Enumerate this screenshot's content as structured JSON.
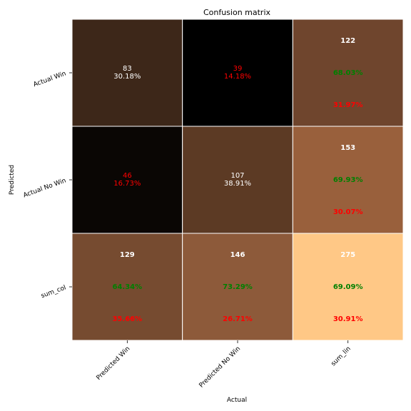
{
  "chart_data": {
    "type": "heatmap",
    "title": "Confusion matrix",
    "xlabel": "Actual",
    "ylabel": "Predicted",
    "x_categories": [
      "Predicted Win",
      "Predicted No Win",
      "sum_lin"
    ],
    "y_categories": [
      "Actual Win",
      "Actual No Win",
      "sum_col"
    ],
    "colors": {
      "text_white": "#ffffff",
      "text_red": "#ff0000",
      "text_green": "#008000",
      "grid_line": "#ffffff"
    },
    "cells": [
      {
        "row": 0,
        "col": 0,
        "value": 83,
        "color": "#3d2719",
        "bold": false,
        "lines": [
          {
            "text": "83",
            "color": "white"
          },
          {
            "text": "30.18%",
            "color": "white"
          }
        ]
      },
      {
        "row": 0,
        "col": 1,
        "value": 39,
        "color": "#000000",
        "bold": false,
        "lines": [
          {
            "text": "39",
            "color": "red"
          },
          {
            "text": "14.18%",
            "color": "red"
          }
        ]
      },
      {
        "row": 0,
        "col": 2,
        "value": 122,
        "color": "#6f452d",
        "bold": true,
        "lines": [
          {
            "text": "122",
            "color": "white"
          },
          {
            "text": "68.03%",
            "color": "green"
          },
          {
            "text": "31.97%",
            "color": "red"
          }
        ]
      },
      {
        "row": 1,
        "col": 0,
        "value": 46,
        "color": "#0a0604",
        "bold": false,
        "lines": [
          {
            "text": "46",
            "color": "red"
          },
          {
            "text": "16.73%",
            "color": "red"
          }
        ]
      },
      {
        "row": 1,
        "col": 1,
        "value": 107,
        "color": "#5c3a24",
        "bold": false,
        "lines": [
          {
            "text": "107",
            "color": "white"
          },
          {
            "text": "38.91%",
            "color": "white"
          }
        ]
      },
      {
        "row": 1,
        "col": 2,
        "value": 153,
        "color": "#99603c",
        "bold": true,
        "lines": [
          {
            "text": "153",
            "color": "white"
          },
          {
            "text": "69.93%",
            "color": "green"
          },
          {
            "text": "30.07%",
            "color": "red"
          }
        ]
      },
      {
        "row": 2,
        "col": 0,
        "value": 129,
        "color": "#764b30",
        "bold": true,
        "lines": [
          {
            "text": "129",
            "color": "white"
          },
          {
            "text": "64.34%",
            "color": "green"
          },
          {
            "text": "35.66%",
            "color": "red"
          }
        ]
      },
      {
        "row": 2,
        "col": 1,
        "value": 146,
        "color": "#8d5a3a",
        "bold": true,
        "lines": [
          {
            "text": "146",
            "color": "white"
          },
          {
            "text": "73.29%",
            "color": "green"
          },
          {
            "text": "26.71%",
            "color": "red"
          }
        ]
      },
      {
        "row": 2,
        "col": 2,
        "value": 275,
        "color": "#ffc886",
        "bold": true,
        "lines": [
          {
            "text": "275",
            "color": "white"
          },
          {
            "text": "69.09%",
            "color": "green"
          },
          {
            "text": "30.91%",
            "color": "red"
          }
        ]
      }
    ]
  }
}
